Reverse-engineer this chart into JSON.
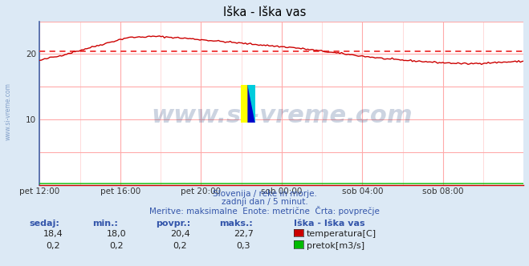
{
  "title": "Iška - Iška vas",
  "bg_color": "#dce9f5",
  "plot_bg_color": "#ffffff",
  "grid_color": "#ffaaaa",
  "spine_color": "#4466aa",
  "title_color": "#000000",
  "xlim": [
    0,
    288
  ],
  "ylim": [
    0,
    25
  ],
  "ytick_vals": [
    10,
    20
  ],
  "xtick_labels": [
    "pet 12:00",
    "pet 16:00",
    "pet 20:00",
    "sob 00:00",
    "sob 04:00",
    "sob 08:00"
  ],
  "xtick_positions": [
    0,
    48,
    96,
    144,
    192,
    240
  ],
  "avg_line_y": 20.4,
  "avg_line_color": "#ee3333",
  "temp_line_color": "#cc0000",
  "flow_line_color": "#00bb00",
  "watermark_text": "www.si-vreme.com",
  "watermark_color": "#1a3c7a",
  "watermark_alpha": 0.22,
  "watermark_fontsize": 24,
  "footer_line1": "Slovenija / reke in morje.",
  "footer_line2": "zadnji dan / 5 minut.",
  "footer_line3": "Meritve: maksimalne  Enote: metrične  Črta: povprečje",
  "footer_color": "#3355aa",
  "legend_station": "Iška - Iška vas",
  "legend_items": [
    {
      "label": "temperatura[C]",
      "color": "#cc0000"
    },
    {
      "label": "pretok[m3/s]",
      "color": "#00bb00"
    }
  ],
  "stats_headers": [
    "sedaj:",
    "min.:",
    "povpr.:",
    "maks.:"
  ],
  "stats_temp": [
    "18,4",
    "18,0",
    "20,4",
    "22,7"
  ],
  "stats_flow": [
    "0,2",
    "0,2",
    "0,2",
    "0,3"
  ],
  "sidebar_text": "www.si-vreme.com",
  "sidebar_color": "#6688bb"
}
